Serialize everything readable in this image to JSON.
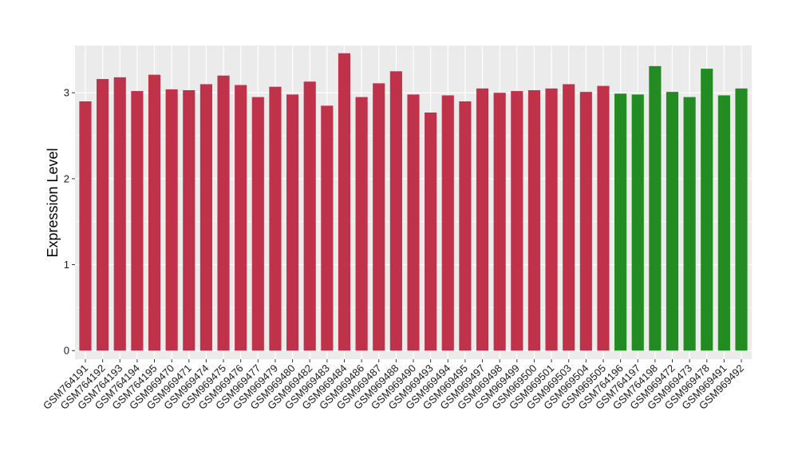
{
  "chart_data": {
    "type": "bar",
    "title": "",
    "xlabel": "",
    "ylabel": "Expression Level",
    "ylim": [
      -0.1,
      3.55
    ],
    "yticks": [
      0,
      1,
      2,
      3
    ],
    "grid": true,
    "legend": "none",
    "background": "#ebebeb",
    "gridline_color": "#ffffff",
    "colors": {
      "group_a": "#c0314a",
      "group_b": "#228b22"
    },
    "categories": [
      "GSM764191",
      "GSM764192",
      "GSM764193",
      "GSM764194",
      "GSM764195",
      "GSM969470",
      "GSM969471",
      "GSM969474",
      "GSM969475",
      "GSM969476",
      "GSM969477",
      "GSM969479",
      "GSM969480",
      "GSM969482",
      "GSM969483",
      "GSM969484",
      "GSM969486",
      "GSM969487",
      "GSM969488",
      "GSM969490",
      "GSM969493",
      "GSM969494",
      "GSM969495",
      "GSM969497",
      "GSM969498",
      "GSM969499",
      "GSM969500",
      "GSM969501",
      "GSM969503",
      "GSM969504",
      "GSM969505",
      "GSM764196",
      "GSM764197",
      "GSM764198",
      "GSM969472",
      "GSM969473",
      "GSM969478",
      "GSM969491",
      "GSM969492"
    ],
    "values": [
      2.9,
      3.16,
      3.18,
      3.02,
      3.21,
      3.04,
      3.03,
      3.1,
      3.2,
      3.09,
      2.95,
      3.07,
      2.98,
      3.13,
      2.85,
      3.46,
      2.95,
      3.11,
      3.25,
      2.98,
      2.77,
      2.97,
      2.9,
      3.05,
      3.0,
      3.02,
      3.03,
      3.05,
      3.1,
      3.01,
      3.08,
      2.99,
      2.98,
      3.31,
      3.01,
      2.95,
      3.28,
      2.97,
      3.05
    ],
    "groups": [
      "a",
      "a",
      "a",
      "a",
      "a",
      "a",
      "a",
      "a",
      "a",
      "a",
      "a",
      "a",
      "a",
      "a",
      "a",
      "a",
      "a",
      "a",
      "a",
      "a",
      "a",
      "a",
      "a",
      "a",
      "a",
      "a",
      "a",
      "a",
      "a",
      "a",
      "a",
      "b",
      "b",
      "b",
      "b",
      "b",
      "b",
      "b",
      "b"
    ]
  }
}
